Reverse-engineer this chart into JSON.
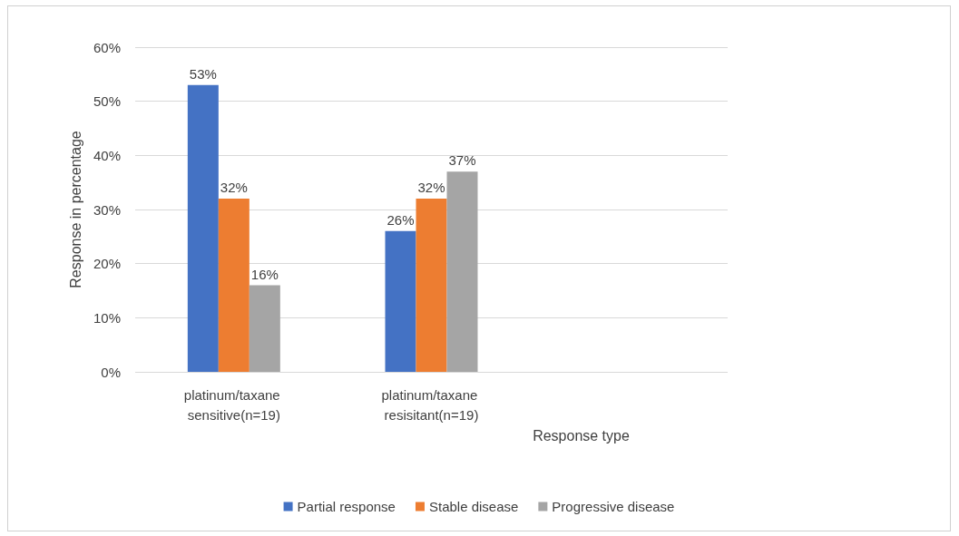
{
  "chart_data": {
    "type": "bar",
    "xlabel": "Response type",
    "ylabel": "Response in percentage",
    "categories": [
      "platinum/taxane sensitive(n=19)",
      "platinum/taxane resisitant(n=19)"
    ],
    "series": [
      {
        "name": "Partial response",
        "color": "#4472c4",
        "values": [
          53,
          26
        ],
        "value_labels": [
          "53%",
          "26%"
        ]
      },
      {
        "name": "Stable disease",
        "color": "#ed7d31",
        "values": [
          32,
          32
        ],
        "value_labels": [
          "32%",
          "32%"
        ]
      },
      {
        "name": "Progressive disease",
        "color": "#a5a5a5",
        "values": [
          16,
          37
        ],
        "value_labels": [
          "16%",
          "37%"
        ]
      }
    ],
    "ylim": [
      0,
      60
    ],
    "yticks": [
      {
        "value": 0,
        "label": "0%"
      },
      {
        "value": 10,
        "label": "10%"
      },
      {
        "value": 20,
        "label": "20%"
      },
      {
        "value": 30,
        "label": "30%"
      },
      {
        "value": 40,
        "label": "40%"
      },
      {
        "value": 50,
        "label": "50%"
      },
      {
        "value": 60,
        "label": "60%"
      }
    ],
    "grid": "y",
    "legend": "bottom"
  }
}
